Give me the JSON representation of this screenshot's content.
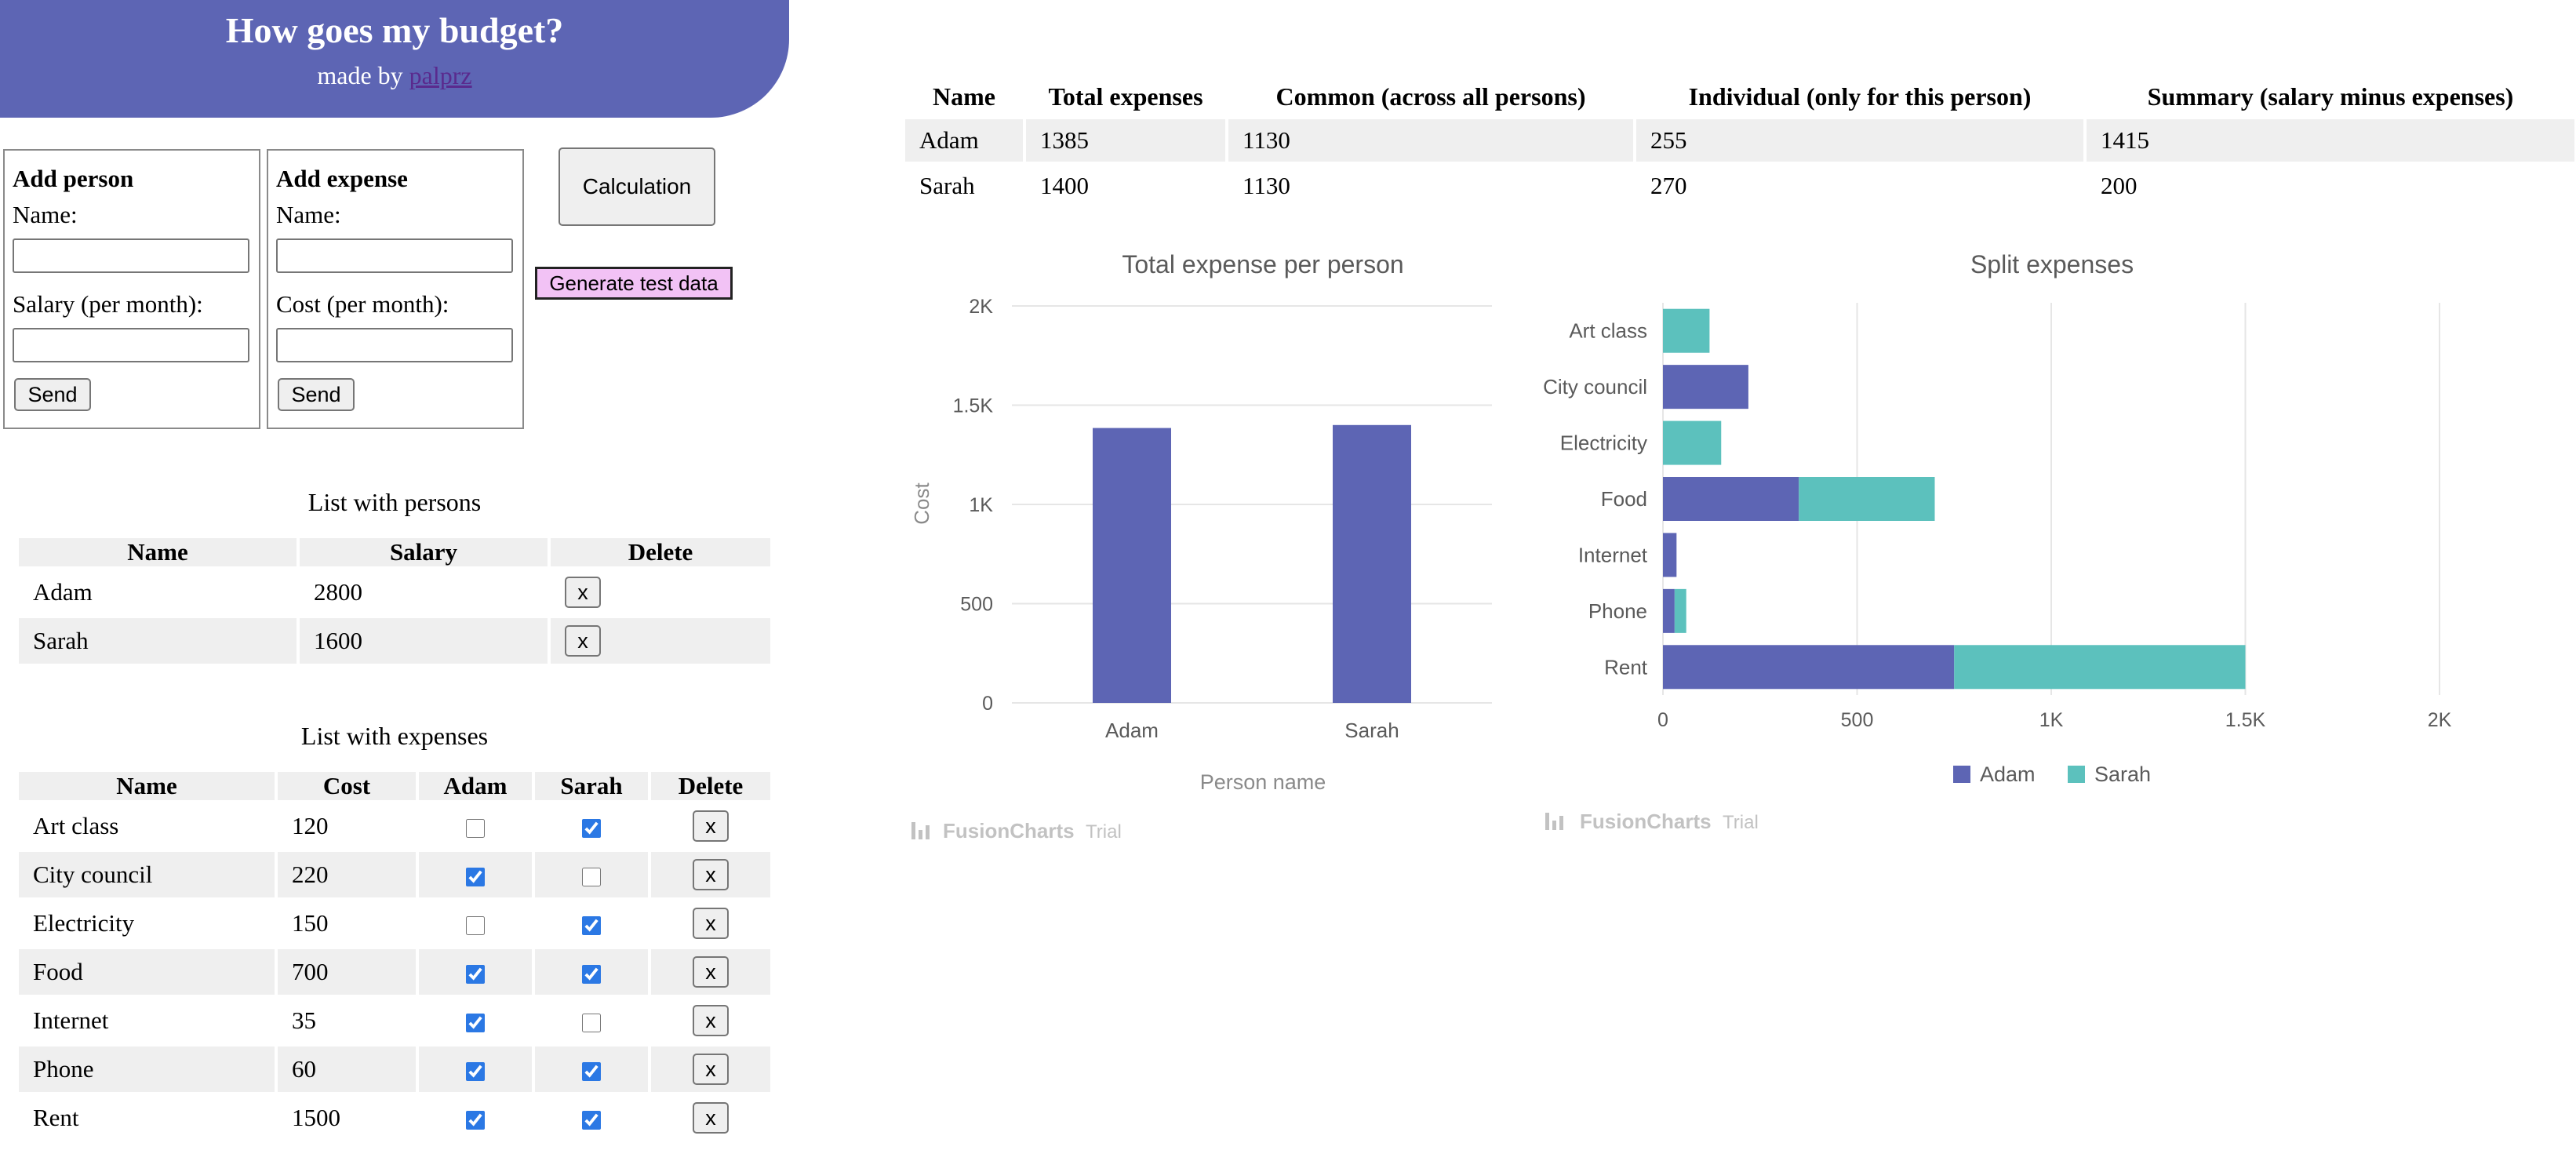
{
  "header": {
    "title": "How goes my budget?",
    "made_by": "made by",
    "author": "palprz"
  },
  "add_person": {
    "heading": "Add person",
    "name_label": "Name:",
    "salary_label": "Salary (per month):",
    "name_value": "",
    "salary_value": "",
    "send_label": "Send"
  },
  "add_expense": {
    "heading": "Add expense",
    "name_label": "Name:",
    "cost_label": "Cost (per month):",
    "name_value": "",
    "cost_value": "",
    "send_label": "Send"
  },
  "actions": {
    "calculation_label": "Calculation",
    "test_data_label": "Generate test data"
  },
  "persons": {
    "caption": "List with persons",
    "headers": [
      "Name",
      "Salary",
      "Delete"
    ],
    "rows": [
      {
        "name": "Adam",
        "salary": "2800",
        "delete": "x"
      },
      {
        "name": "Sarah",
        "salary": "1600",
        "delete": "x"
      }
    ]
  },
  "expenses": {
    "caption": "List with expenses",
    "headers": [
      "Name",
      "Cost",
      "Adam",
      "Sarah",
      "Delete"
    ],
    "rows": [
      {
        "name": "Art class",
        "cost": "120",
        "adam": false,
        "sarah": true,
        "delete": "x"
      },
      {
        "name": "City council",
        "cost": "220",
        "adam": true,
        "sarah": false,
        "delete": "x"
      },
      {
        "name": "Electricity",
        "cost": "150",
        "adam": false,
        "sarah": true,
        "delete": "x"
      },
      {
        "name": "Food",
        "cost": "700",
        "adam": true,
        "sarah": true,
        "delete": "x"
      },
      {
        "name": "Internet",
        "cost": "35",
        "adam": true,
        "sarah": false,
        "delete": "x"
      },
      {
        "name": "Phone",
        "cost": "60",
        "adam": true,
        "sarah": true,
        "delete": "x"
      },
      {
        "name": "Rent",
        "cost": "1500",
        "adam": true,
        "sarah": true,
        "delete": "x"
      }
    ]
  },
  "summary": {
    "headers": [
      "Name",
      "Total expenses",
      "Common (across all persons)",
      "Individual (only for this person)",
      "Summary (salary minus expenses)"
    ],
    "rows": [
      {
        "name": "Adam",
        "total": "1385",
        "common": "1130",
        "individual": "255",
        "summary": "1415"
      },
      {
        "name": "Sarah",
        "total": "1400",
        "common": "1130",
        "individual": "270",
        "summary": "200"
      }
    ]
  },
  "watermark": {
    "brand": "FusionCharts",
    "suffix": "Trial"
  },
  "chart_data": [
    {
      "type": "bar",
      "title": "Total expense per person",
      "xlabel": "Person name",
      "ylabel": "Cost",
      "categories": [
        "Adam",
        "Sarah"
      ],
      "values": [
        1385,
        1400
      ],
      "ylim": [
        0,
        2000
      ],
      "yticks": [
        0,
        500,
        1000,
        1500,
        2000
      ],
      "ytick_labels": [
        "0",
        "500",
        "1K",
        "1.5K",
        "2K"
      ],
      "color": "#5d65b4",
      "grid": true
    },
    {
      "type": "bar",
      "orientation": "horizontal",
      "stacked": true,
      "title": "Split expenses",
      "categories": [
        "Art class",
        "City council",
        "Electricity",
        "Food",
        "Internet",
        "Phone",
        "Rent"
      ],
      "series": [
        {
          "name": "Adam",
          "color": "#5d65b4",
          "values": [
            0,
            220,
            0,
            350,
            35,
            30,
            750
          ]
        },
        {
          "name": "Sarah",
          "color": "#5cc1bd",
          "values": [
            120,
            0,
            150,
            350,
            0,
            30,
            750
          ]
        }
      ],
      "xlim": [
        0,
        2000
      ],
      "xticks": [
        0,
        500,
        1000,
        1500,
        2000
      ],
      "xtick_labels": [
        "0",
        "500",
        "1K",
        "1.5K",
        "2K"
      ],
      "legend": "bottom",
      "grid": true
    }
  ]
}
